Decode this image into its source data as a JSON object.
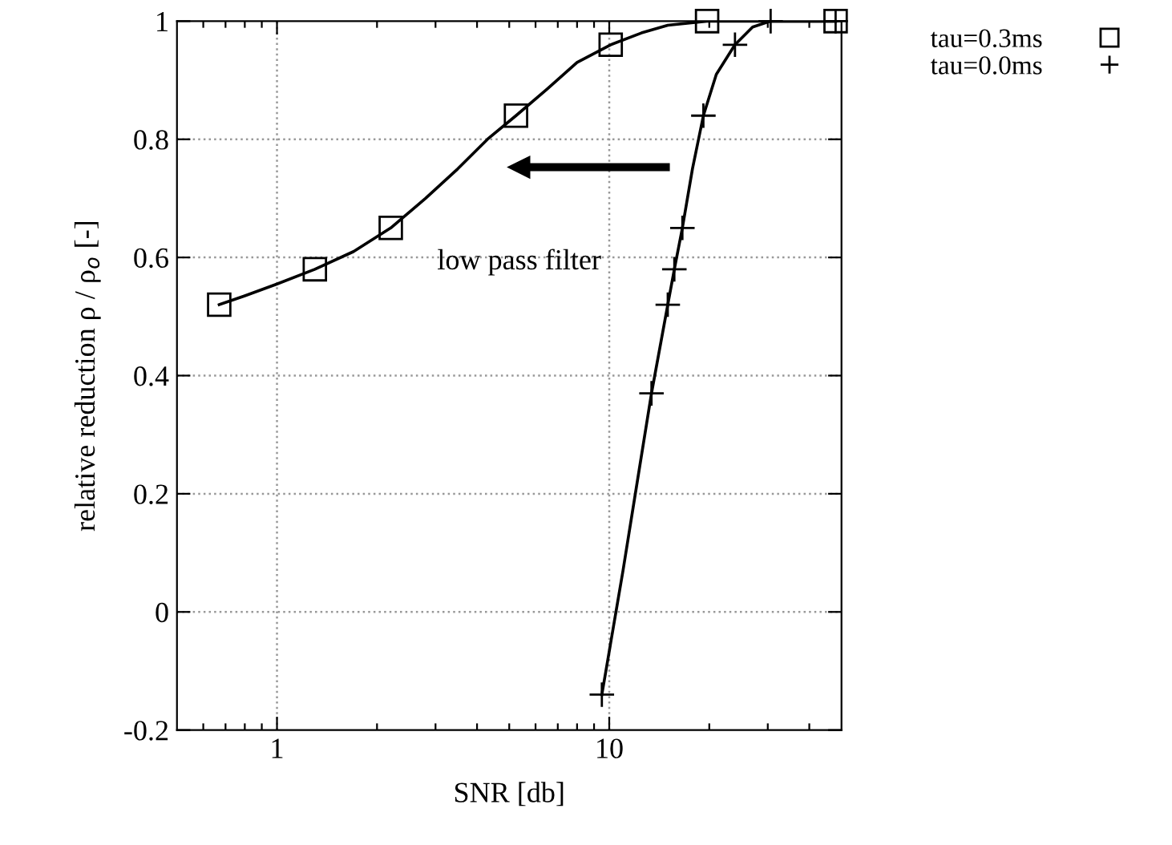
{
  "chart_data": {
    "type": "line",
    "xlabel": "SNR [db]",
    "ylabel": "relative reduction ρ / ρ$_{o}$ [-]",
    "log": "x",
    "xlim": [
      0.5,
      50
    ],
    "ylim": [
      -0.2,
      1
    ],
    "xticks": [
      {
        "value": 0.6,
        "label": null
      },
      {
        "value": 0.7,
        "label": null
      },
      {
        "value": 0.8,
        "label": null
      },
      {
        "value": 0.9,
        "label": null
      },
      1,
      {
        "value": 2,
        "label": null
      },
      {
        "value": 3,
        "label": null
      },
      {
        "value": 4,
        "label": null
      },
      {
        "value": 5,
        "label": null
      },
      {
        "value": 6,
        "label": null
      },
      {
        "value": 7,
        "label": null
      },
      {
        "value": 8,
        "label": null
      },
      {
        "value": 9,
        "label": null
      },
      10,
      {
        "value": 20,
        "label": null
      },
      {
        "value": 30,
        "label": null
      },
      {
        "value": 40,
        "label": null
      }
    ],
    "yticks": [
      -0.2,
      0,
      0.2,
      0.4,
      0.6,
      0.8,
      1
    ],
    "grid": true,
    "legend": "top right",
    "line_style": "solid",
    "annotations": [
      "low pass filter"
    ],
    "series": [
      {
        "color": "#000000",
        "x": [
          0.67,
          0.8,
          1.0,
          1.3,
          1.7,
          2.2,
          2.8,
          3.5,
          4.3,
          5.24,
          6.5,
          8,
          10.1,
          12.5,
          15,
          19.7,
          48
        ],
        "values": [
          0.52,
          0.535,
          0.555,
          0.58,
          0.61,
          0.65,
          0.7,
          0.75,
          0.8,
          0.84,
          0.885,
          0.93,
          0.96,
          0.98,
          0.993,
          1.0,
          1.0
        ]
      },
      {
        "color": "#000000",
        "x": [
          9.5,
          11,
          12.3,
          13.4,
          15.0,
          15.7,
          16.6,
          17.8,
          19.2,
          21,
          23.9,
          27,
          30.6,
          48
        ],
        "values": [
          -0.14,
          0.07,
          0.24,
          0.37,
          0.52,
          0.58,
          0.65,
          0.75,
          0.84,
          0.91,
          0.96,
          0.99,
          1.0,
          1.0
        ]
      },
      {
        "type": "scatter",
        "name": "tau=0.3ms",
        "color": "#000000",
        "marker": "square",
        "x": [
          0.67,
          1.3,
          2.2,
          5.24,
          10.1,
          19.7,
          48
        ],
        "values": [
          0.52,
          0.58,
          0.65,
          0.84,
          0.96,
          1.0,
          1.0
        ]
      },
      {
        "type": "scatter",
        "name": "tau=0.0ms",
        "color": "#000000",
        "marker": "cross",
        "x": [
          9.5,
          13.4,
          15.0,
          15.7,
          16.6,
          19.2,
          23.9,
          30.6,
          48
        ],
        "values": [
          -0.14,
          0.37,
          0.52,
          0.58,
          0.65,
          0.84,
          0.96,
          1.0,
          1.0
        ]
      }
    ]
  }
}
